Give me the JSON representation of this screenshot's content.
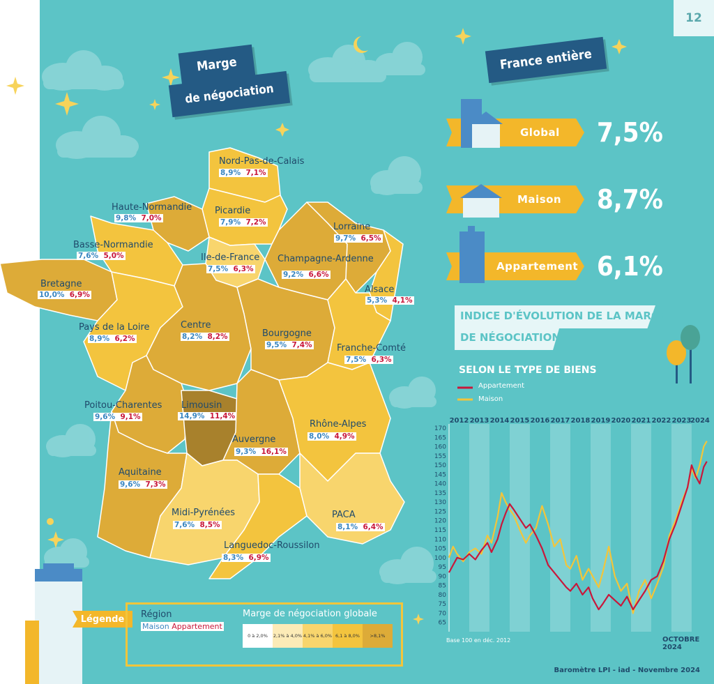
{
  "page_number": "12",
  "title_banner": {
    "line1": "Marge",
    "line2": "de négociation"
  },
  "france_banner": "France entière",
  "france_rows": [
    {
      "label": "Global",
      "value": "7,5%"
    },
    {
      "label": "Maison",
      "value": "8,7%"
    },
    {
      "label": "Appartement",
      "value": "6,1%"
    }
  ],
  "chart_banner": {
    "line1": "Indice d'évolution de la marge",
    "line2": "de négociation"
  },
  "chart_subtitle": "Selon le type de biens",
  "regions": [
    {
      "name": "Nord-Pas-de-Calais",
      "maison": "8,9%",
      "appartement": "7,1%"
    },
    {
      "name": "Haute-Normandie",
      "maison": "9,8%",
      "appartement": "7,0%"
    },
    {
      "name": "Picardie",
      "maison": "7,9%",
      "appartement": "7,2%"
    },
    {
      "name": "Lorraine",
      "maison": "9,7%",
      "appartement": "6,5%"
    },
    {
      "name": "Basse-Normandie",
      "maison": "7,6%",
      "appartement": "5,0%"
    },
    {
      "name": "Ile-de-France",
      "maison": "7,5%",
      "appartement": "6,3%"
    },
    {
      "name": "Champagne-Ardenne",
      "maison": "9,2%",
      "appartement": "6,6%"
    },
    {
      "name": "Bretagne",
      "maison": "10,0%",
      "appartement": "6,9%"
    },
    {
      "name": "Alsace",
      "maison": "5,3%",
      "appartement": "4,1%"
    },
    {
      "name": "Pays de la Loire",
      "maison": "8,9%",
      "appartement": "6,2%"
    },
    {
      "name": "Centre",
      "maison": "8,2%",
      "appartement": "8,2%"
    },
    {
      "name": "Bourgogne",
      "maison": "9,5%",
      "appartement": "7,4%"
    },
    {
      "name": "Franche-Comté",
      "maison": "7,5%",
      "appartement": "6,3%"
    },
    {
      "name": "Poitou-Charentes",
      "maison": "9,6%",
      "appartement": "9,1%"
    },
    {
      "name": "Limousin",
      "maison": "14,9%",
      "appartement": "11,4%"
    },
    {
      "name": "Rhône-Alpes",
      "maison": "8,0%",
      "appartement": "4,9%"
    },
    {
      "name": "Auvergne",
      "maison": "9,3%",
      "appartement": "16,1%"
    },
    {
      "name": "Aquitaine",
      "maison": "9,6%",
      "appartement": "7,3%"
    },
    {
      "name": "Midi-Pyrénées",
      "maison": "7,6%",
      "appartement": "8,5%"
    },
    {
      "name": "PACA",
      "maison": "8,1%",
      "appartement": "6,4%"
    },
    {
      "name": "Languedoc-Roussilon",
      "maison": "8,3%",
      "appartement": "6,9%"
    }
  ],
  "legend": {
    "tag": "Légende",
    "region_label": "Région",
    "maison_label": "Maison",
    "appart_label": "Appartement",
    "scale_title": "Marge de négociation globale",
    "scale": [
      {
        "label": "0 à 2,0%",
        "color": "#ffffff"
      },
      {
        "label": "2,1% à 4,0%",
        "color": "#fcebb7"
      },
      {
        "label": "4,1% à 6,0%",
        "color": "#f8d56d"
      },
      {
        "label": "6,1 à 8,0%",
        "color": "#f3c43e"
      },
      {
        "label": ">8,1%",
        "color": "#ddab38"
      }
    ]
  },
  "colors": {
    "background": "#5cc4c6",
    "banner": "#245a84",
    "accent": "#f3b72a",
    "appartement": "#c8173a",
    "maison": "#f3c53a"
  },
  "icons": [
    "star-icon",
    "moon-icon",
    "cloud-icon",
    "building-icon",
    "house-icon",
    "tree-icon"
  ],
  "chart_data": {
    "type": "line",
    "x_top_labels": [
      "2012",
      "2013",
      "2014",
      "2015",
      "2016",
      "2017",
      "2018",
      "2019",
      "2020",
      "2021",
      "2022",
      "2023",
      "2024"
    ],
    "yticks": [
      "170",
      "165",
      "160",
      "155",
      "150",
      "145",
      "140",
      "135",
      "130",
      "125",
      "120",
      "115",
      "110",
      "105",
      "100",
      "95",
      "90",
      "85",
      "80",
      "75",
      "70",
      "65"
    ],
    "ylim": [
      60,
      170
    ],
    "xlim": [
      2012.0,
      2024.83
    ],
    "series": [
      {
        "name": "Appartement",
        "color": "#c8173a",
        "points": [
          [
            2012.0,
            92
          ],
          [
            2012.2,
            96
          ],
          [
            2012.4,
            100
          ],
          [
            2012.7,
            99
          ],
          [
            2013.0,
            102
          ],
          [
            2013.3,
            99
          ],
          [
            2013.6,
            104
          ],
          [
            2013.9,
            108
          ],
          [
            2014.1,
            103
          ],
          [
            2014.4,
            110
          ],
          [
            2014.6,
            118
          ],
          [
            2014.8,
            124
          ],
          [
            2015.0,
            129
          ],
          [
            2015.2,
            126
          ],
          [
            2015.5,
            121
          ],
          [
            2015.8,
            116
          ],
          [
            2016.0,
            118
          ],
          [
            2016.3,
            112
          ],
          [
            2016.6,
            105
          ],
          [
            2016.9,
            96
          ],
          [
            2017.2,
            92
          ],
          [
            2017.5,
            88
          ],
          [
            2017.8,
            84
          ],
          [
            2018.0,
            82
          ],
          [
            2018.3,
            86
          ],
          [
            2018.6,
            80
          ],
          [
            2018.9,
            84
          ],
          [
            2019.1,
            78
          ],
          [
            2019.4,
            72
          ],
          [
            2019.6,
            75
          ],
          [
            2019.9,
            80
          ],
          [
            2020.2,
            77
          ],
          [
            2020.5,
            74
          ],
          [
            2020.8,
            79
          ],
          [
            2021.1,
            72
          ],
          [
            2021.4,
            77
          ],
          [
            2021.7,
            82
          ],
          [
            2022.0,
            88
          ],
          [
            2022.3,
            90
          ],
          [
            2022.6,
            98
          ],
          [
            2022.9,
            110
          ],
          [
            2023.2,
            118
          ],
          [
            2023.5,
            128
          ],
          [
            2023.8,
            138
          ],
          [
            2024.0,
            150
          ],
          [
            2024.2,
            144
          ],
          [
            2024.4,
            140
          ],
          [
            2024.6,
            149
          ],
          [
            2024.75,
            152
          ]
        ]
      },
      {
        "name": "Maison",
        "color": "#f3c53a",
        "points": [
          [
            2012.0,
            100
          ],
          [
            2012.2,
            106
          ],
          [
            2012.4,
            102
          ],
          [
            2012.7,
            98
          ],
          [
            2013.0,
            103
          ],
          [
            2013.3,
            105
          ],
          [
            2013.6,
            102
          ],
          [
            2013.9,
            112
          ],
          [
            2014.1,
            108
          ],
          [
            2014.4,
            122
          ],
          [
            2014.6,
            135
          ],
          [
            2014.8,
            130
          ],
          [
            2015.0,
            126
          ],
          [
            2015.2,
            123
          ],
          [
            2015.5,
            115
          ],
          [
            2015.8,
            108
          ],
          [
            2016.0,
            112
          ],
          [
            2016.3,
            116
          ],
          [
            2016.6,
            128
          ],
          [
            2016.9,
            118
          ],
          [
            2017.2,
            106
          ],
          [
            2017.5,
            110
          ],
          [
            2017.8,
            96
          ],
          [
            2018.0,
            94
          ],
          [
            2018.3,
            101
          ],
          [
            2018.6,
            88
          ],
          [
            2018.9,
            94
          ],
          [
            2019.1,
            90
          ],
          [
            2019.4,
            84
          ],
          [
            2019.6,
            92
          ],
          [
            2019.9,
            106
          ],
          [
            2020.2,
            90
          ],
          [
            2020.5,
            82
          ],
          [
            2020.8,
            86
          ],
          [
            2021.1,
            70
          ],
          [
            2021.4,
            82
          ],
          [
            2021.7,
            88
          ],
          [
            2022.0,
            78
          ],
          [
            2022.3,
            86
          ],
          [
            2022.6,
            95
          ],
          [
            2022.9,
            112
          ],
          [
            2023.2,
            120
          ],
          [
            2023.5,
            130
          ],
          [
            2023.8,
            138
          ],
          [
            2024.0,
            148
          ],
          [
            2024.2,
            143
          ],
          [
            2024.4,
            150
          ],
          [
            2024.6,
            160
          ],
          [
            2024.75,
            163
          ]
        ]
      }
    ],
    "base_note": "Base 100 en déc. 2012",
    "date_label": "Octobre 2024"
  },
  "footer": "Baromètre LPI - iad - Novembre 2024"
}
